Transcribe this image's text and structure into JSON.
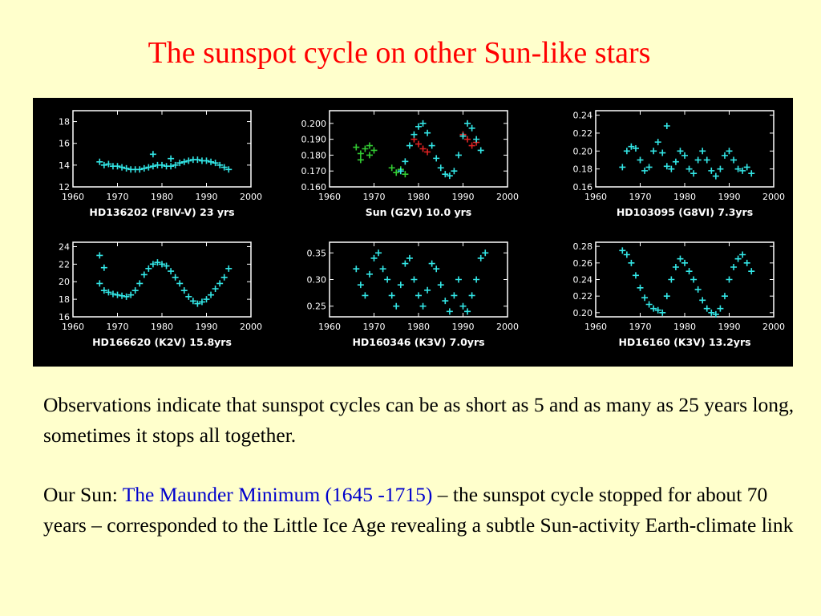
{
  "title": "The sunspot cycle on other Sun-like stars",
  "colors": {
    "title": "#ff0000",
    "highlight": "#0000cc",
    "background": "#ffffcc",
    "points": "#33e6e6",
    "points_green": "#33cc33",
    "points_red": "#dd2222"
  },
  "body": {
    "paragraph1": "Observations indicate that sunspot cycles can be as short as 5 and as many as 25 years long, sometimes it stops all together.",
    "paragraph2_prefix": "Our Sun: ",
    "paragraph2_highlight": "The Maunder Minimum (1645 -1715)",
    "paragraph2_suffix": " – the sunspot cycle stopped for about 70 years – corresponded to the Little Ice Age revealing a subtle Sun-activity Earth-climate link"
  },
  "chart_data": [
    {
      "type": "scatter",
      "caption": "HD136202 (F8IV-V) 23 yrs",
      "xlim": [
        1960,
        2000
      ],
      "ylim": [
        12,
        19
      ],
      "yticks": [
        "12",
        "14",
        "16",
        "18"
      ],
      "ytick_values": [
        12,
        14,
        16,
        18
      ],
      "xticks": [
        "1960",
        "1970",
        "1980",
        "1990",
        "2000"
      ],
      "series": [
        {
          "color": "#33e6e6",
          "x": [
            1966,
            1967,
            1968,
            1969,
            1970,
            1971,
            1972,
            1973,
            1974,
            1975,
            1976,
            1977,
            1978,
            1979,
            1980,
            1981,
            1982,
            1983,
            1984,
            1985,
            1986,
            1987,
            1988,
            1989,
            1990,
            1991,
            1992,
            1993,
            1994,
            1995,
            1978,
            1982
          ],
          "y": [
            14.3,
            14.0,
            14.1,
            13.9,
            13.9,
            13.8,
            13.7,
            13.6,
            13.6,
            13.6,
            13.7,
            13.8,
            13.9,
            14.0,
            14.0,
            13.9,
            13.9,
            14.0,
            14.2,
            14.3,
            14.4,
            14.5,
            14.5,
            14.4,
            14.4,
            14.3,
            14.2,
            14.0,
            13.8,
            13.6,
            15.0,
            14.6
          ]
        }
      ]
    },
    {
      "type": "scatter",
      "caption": "Sun (G2V) 10.0 yrs",
      "xlim": [
        1960,
        2000
      ],
      "ylim": [
        0.16,
        0.208
      ],
      "yticks": [
        "0.160",
        "0.170",
        "0.180",
        "0.190",
        "0.200"
      ],
      "ytick_values": [
        0.16,
        0.17,
        0.18,
        0.19,
        0.2
      ],
      "xticks": [
        "1960",
        "1970",
        "1980",
        "1990",
        "2000"
      ],
      "series": [
        {
          "color": "#33cc33",
          "x": [
            1966,
            1967,
            1968,
            1969,
            1970,
            1967,
            1969,
            1974,
            1975,
            1976,
            1977
          ],
          "y": [
            0.185,
            0.181,
            0.184,
            0.18,
            0.183,
            0.177,
            0.186,
            0.172,
            0.169,
            0.171,
            0.168
          ]
        },
        {
          "color": "#dd2222",
          "x": [
            1979,
            1980,
            1981,
            1982,
            1990,
            1991,
            1992,
            1993
          ],
          "y": [
            0.19,
            0.187,
            0.184,
            0.182,
            0.193,
            0.19,
            0.186,
            0.188
          ]
        },
        {
          "color": "#33e6e6",
          "x": [
            1976,
            1977,
            1978,
            1979,
            1980,
            1981,
            1982,
            1983,
            1984,
            1985,
            1986,
            1987,
            1988,
            1989,
            1990,
            1991,
            1992,
            1993,
            1994
          ],
          "y": [
            0.17,
            0.176,
            0.186,
            0.193,
            0.198,
            0.2,
            0.194,
            0.186,
            0.178,
            0.172,
            0.168,
            0.167,
            0.17,
            0.18,
            0.192,
            0.2,
            0.197,
            0.19,
            0.183
          ]
        }
      ]
    },
    {
      "type": "scatter",
      "caption": "HD103095 (G8VI) 7.3yrs",
      "xlim": [
        1960,
        2000
      ],
      "ylim": [
        0.16,
        0.245
      ],
      "yticks": [
        "0.16",
        "0.18",
        "0.20",
        "0.22",
        "0.24"
      ],
      "ytick_values": [
        0.16,
        0.18,
        0.2,
        0.22,
        0.24
      ],
      "xticks": [
        "1960",
        "1970",
        "1980",
        "1990",
        "2000"
      ],
      "series": [
        {
          "color": "#33e6e6",
          "x": [
            1966,
            1967,
            1968,
            1969,
            1970,
            1971,
            1972,
            1973,
            1974,
            1975,
            1976,
            1977,
            1978,
            1979,
            1980,
            1981,
            1982,
            1983,
            1984,
            1985,
            1986,
            1987,
            1988,
            1989,
            1990,
            1991,
            1992,
            1993,
            1994,
            1995,
            1976
          ],
          "y": [
            0.182,
            0.2,
            0.205,
            0.203,
            0.19,
            0.178,
            0.182,
            0.2,
            0.21,
            0.198,
            0.183,
            0.18,
            0.188,
            0.2,
            0.195,
            0.18,
            0.175,
            0.19,
            0.2,
            0.19,
            0.178,
            0.172,
            0.18,
            0.195,
            0.2,
            0.19,
            0.18,
            0.178,
            0.182,
            0.175,
            0.228
          ]
        }
      ]
    },
    {
      "type": "scatter",
      "caption": "HD166620 (K2V) 15.8yrs",
      "xlim": [
        1960,
        2000
      ],
      "ylim": [
        16,
        24.5
      ],
      "yticks": [
        "16",
        "18",
        "20",
        "22",
        "24"
      ],
      "ytick_values": [
        16,
        18,
        20,
        22,
        24
      ],
      "xticks": [
        "1960",
        "1970",
        "1980",
        "1990",
        "2000"
      ],
      "series": [
        {
          "color": "#33e6e6",
          "x": [
            1966,
            1967,
            1968,
            1969,
            1970,
            1971,
            1972,
            1973,
            1974,
            1975,
            1976,
            1977,
            1978,
            1979,
            1980,
            1981,
            1982,
            1983,
            1984,
            1985,
            1986,
            1987,
            1988,
            1989,
            1990,
            1991,
            1992,
            1993,
            1994,
            1995,
            1966,
            1967
          ],
          "y": [
            19.8,
            19.0,
            18.8,
            18.6,
            18.5,
            18.4,
            18.3,
            18.5,
            19.0,
            19.8,
            20.8,
            21.5,
            22.0,
            22.2,
            22.0,
            21.8,
            21.2,
            20.5,
            19.8,
            19.0,
            18.3,
            17.8,
            17.5,
            17.7,
            18.0,
            18.5,
            19.2,
            19.8,
            20.5,
            21.5,
            23.0,
            21.6
          ]
        }
      ]
    },
    {
      "type": "scatter",
      "caption": "HD160346 (K3V) 7.0yrs",
      "xlim": [
        1960,
        2000
      ],
      "ylim": [
        0.23,
        0.37
      ],
      "yticks": [
        "0.25",
        "0.30",
        "0.35"
      ],
      "ytick_values": [
        0.25,
        0.3,
        0.35
      ],
      "xticks": [
        "1960",
        "1970",
        "1980",
        "1990",
        "2000"
      ],
      "series": [
        {
          "color": "#33e6e6",
          "x": [
            1966,
            1967,
            1968,
            1969,
            1970,
            1971,
            1972,
            1973,
            1974,
            1975,
            1976,
            1977,
            1978,
            1979,
            1980,
            1981,
            1982,
            1983,
            1984,
            1985,
            1986,
            1987,
            1988,
            1989,
            1990,
            1991,
            1992,
            1993,
            1994,
            1995
          ],
          "y": [
            0.32,
            0.29,
            0.27,
            0.31,
            0.34,
            0.35,
            0.32,
            0.3,
            0.27,
            0.25,
            0.29,
            0.33,
            0.34,
            0.3,
            0.27,
            0.25,
            0.28,
            0.33,
            0.32,
            0.29,
            0.26,
            0.24,
            0.27,
            0.3,
            0.25,
            0.24,
            0.27,
            0.3,
            0.34,
            0.35
          ]
        }
      ]
    },
    {
      "type": "scatter",
      "caption": "HD16160 (K3V) 13.2yrs",
      "xlim": [
        1960,
        2000
      ],
      "ylim": [
        0.195,
        0.285
      ],
      "yticks": [
        "0.20",
        "0.22",
        "0.24",
        "0.26",
        "0.28"
      ],
      "ytick_values": [
        0.2,
        0.22,
        0.24,
        0.26,
        0.28
      ],
      "xticks": [
        "1960",
        "1970",
        "1980",
        "1990",
        "2000"
      ],
      "series": [
        {
          "color": "#33e6e6",
          "x": [
            1966,
            1967,
            1968,
            1969,
            1970,
            1971,
            1972,
            1973,
            1974,
            1975,
            1976,
            1977,
            1978,
            1979,
            1980,
            1981,
            1982,
            1983,
            1984,
            1985,
            1986,
            1987,
            1988,
            1989,
            1990,
            1991,
            1992,
            1993,
            1994,
            1995
          ],
          "y": [
            0.275,
            0.27,
            0.26,
            0.245,
            0.23,
            0.218,
            0.21,
            0.205,
            0.203,
            0.2,
            0.22,
            0.24,
            0.255,
            0.265,
            0.26,
            0.25,
            0.24,
            0.228,
            0.215,
            0.205,
            0.2,
            0.198,
            0.205,
            0.22,
            0.24,
            0.255,
            0.265,
            0.27,
            0.26,
            0.25
          ]
        }
      ]
    }
  ]
}
